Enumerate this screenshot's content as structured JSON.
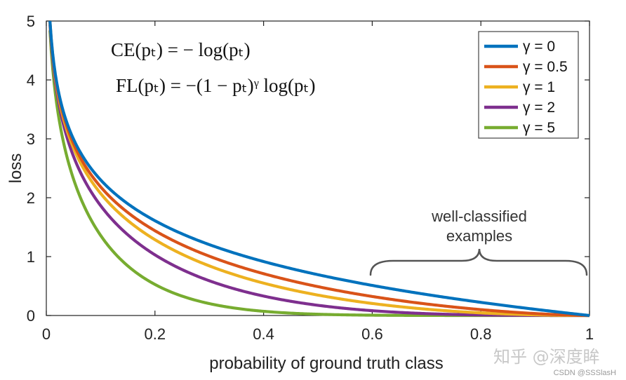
{
  "chart_data": {
    "type": "line",
    "xlabel": "probability of ground truth class",
    "ylabel": "loss",
    "xlim": [
      0,
      1
    ],
    "ylim": [
      0,
      5
    ],
    "xticks": [
      "0",
      "0.2",
      "0.4",
      "0.6",
      "0.8",
      "1"
    ],
    "yticks": [
      "0",
      "1",
      "2",
      "3",
      "4",
      "5"
    ],
    "grid": false,
    "legend_position": "top-right",
    "x": [
      0.01,
      0.02,
      0.05,
      0.1,
      0.2,
      0.3,
      0.4,
      0.5,
      0.6,
      0.7,
      0.8,
      0.9,
      1.0
    ],
    "series": [
      {
        "name": "γ = 0",
        "gamma": 0,
        "color": "#0072BD",
        "values": [
          4.61,
          3.91,
          3.0,
          2.3,
          1.61,
          1.2,
          0.92,
          0.69,
          0.51,
          0.36,
          0.22,
          0.11,
          0
        ]
      },
      {
        "name": "γ = 0.5",
        "gamma": 0.5,
        "color": "#D95319",
        "values": [
          4.58,
          3.87,
          2.92,
          2.18,
          1.44,
          1.01,
          0.71,
          0.49,
          0.32,
          0.2,
          0.1,
          0.03,
          0
        ]
      },
      {
        "name": "γ = 1",
        "gamma": 1,
        "color": "#EDB120",
        "values": [
          4.56,
          3.83,
          2.85,
          2.07,
          1.29,
          0.84,
          0.55,
          0.35,
          0.2,
          0.11,
          0.04,
          0.01,
          0
        ]
      },
      {
        "name": "γ = 2",
        "gamma": 2,
        "color": "#7E2F8E",
        "values": [
          4.51,
          3.76,
          2.7,
          1.87,
          1.03,
          0.59,
          0.33,
          0.17,
          0.08,
          0.03,
          0.01,
          0,
          0
        ]
      },
      {
        "name": "γ = 5",
        "gamma": 5,
        "color": "#77AC30",
        "values": [
          4.38,
          3.54,
          2.32,
          1.36,
          0.53,
          0.2,
          0.07,
          0.02,
          0.01,
          0,
          0,
          0,
          0
        ]
      }
    ],
    "annotations": {
      "formula_ce": "CE(pₜ) = − log(pₜ)",
      "formula_fl": "FL(pₜ) = −(1 − pₜ)ᵞ log(pₜ)",
      "well_classified_line1": "well-classified",
      "well_classified_line2": "examples",
      "brace_x_range": [
        0.6,
        1.0
      ]
    }
  },
  "watermark": {
    "zhihu": "知乎 @深度眸",
    "csdn": "CSDN @SSSlasH"
  }
}
